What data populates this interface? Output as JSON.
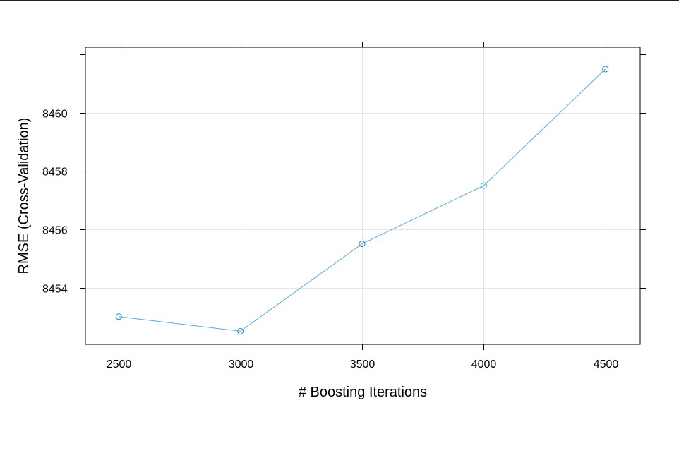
{
  "chart_data": {
    "type": "line",
    "title": "",
    "xlabel": "# Boosting Iterations",
    "ylabel": "RMSE (Cross-Validation)",
    "x": [
      2500,
      3000,
      3500,
      4000,
      4500
    ],
    "series": [
      {
        "values": [
          8453.0,
          8452.5,
          8455.5,
          8457.5,
          8461.5
        ]
      }
    ],
    "xticks": [
      2500,
      3000,
      3500,
      4000,
      4500
    ],
    "yticks": [
      8454,
      8456,
      8458,
      8460
    ],
    "xlim": [
      2363,
      4643
    ],
    "ylim": [
      8452.05,
      8462.25
    ],
    "grid": true,
    "colors": {
      "line": "#5aa9de",
      "point": "#2f86c2",
      "grid": "#e6e6e6",
      "axis": "#000000"
    }
  }
}
